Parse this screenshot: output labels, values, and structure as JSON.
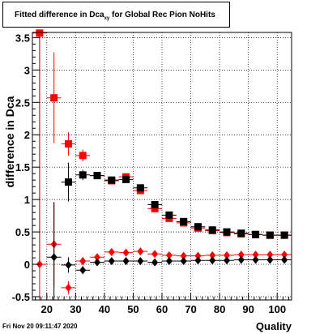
{
  "title": {
    "text": "Fitted difference in Dca",
    "sub": "xy",
    "rest": " for Global Rec Pion NoHits"
  },
  "stamp": "Fri Nov 20 09:11:47 2020",
  "xlabel": "Quality",
  "ylabel": "difference in Dca",
  "chart_data": {
    "type": "scatter",
    "title": "Fitted difference in Dca_xy for Global Rec Pion NoHits",
    "xlabel": "Quality",
    "ylabel": "difference in Dca",
    "xlim": [
      15,
      105
    ],
    "ylim": [
      -0.55,
      3.58
    ],
    "xticks": [
      20,
      30,
      40,
      50,
      60,
      70,
      80,
      90,
      100
    ],
    "yticks": [
      -0.5,
      0,
      0.5,
      1,
      1.5,
      2,
      2.5,
      3,
      3.5
    ],
    "grid": true,
    "series": [
      {
        "marker": "square",
        "color": "#ff0000",
        "x": [
          17.5,
          22.5,
          27.5,
          32.5,
          37.5,
          42.5,
          47.5,
          52.5,
          57.5,
          62.5,
          67.5,
          72.5,
          77.5,
          82.5,
          87.5,
          92.5,
          97.5,
          102.5
        ],
        "y": [
          3.57,
          2.57,
          1.86,
          1.68,
          1.37,
          1.29,
          1.35,
          1.14,
          0.86,
          0.71,
          0.64,
          0.56,
          0.52,
          0.49,
          0.47,
          0.46,
          0.45,
          0.45
        ],
        "err": [
          3.6,
          0.7,
          0.18,
          0.09,
          0.05,
          0.05,
          0.04,
          0.03,
          0.03,
          0.03,
          0.03,
          0.02,
          0.02,
          0.02,
          0.02,
          0.02,
          0.02,
          0.02
        ]
      },
      {
        "marker": "square",
        "color": "#000000",
        "x": [
          27.5,
          32.5,
          37.5,
          42.5,
          47.5,
          52.5,
          57.5,
          62.5,
          67.5,
          72.5,
          77.5,
          82.5,
          87.5,
          92.5,
          97.5,
          102.5
        ],
        "y": [
          1.27,
          1.38,
          1.37,
          1.3,
          1.31,
          1.18,
          0.92,
          0.76,
          0.66,
          0.58,
          0.53,
          0.5,
          0.48,
          0.46,
          0.45,
          0.45
        ],
        "err": [
          0.3,
          0.08,
          0.05,
          0.04,
          0.04,
          0.03,
          0.03,
          0.03,
          0.02,
          0.02,
          0.02,
          0.02,
          0.02,
          0.02,
          0.02,
          0.02
        ]
      },
      {
        "marker": "diamond",
        "color": "#ff0000",
        "x": [
          17.5,
          22.5,
          27.5,
          32.5,
          37.5,
          42.5,
          47.5,
          52.5,
          57.5,
          62.5,
          67.5,
          72.5,
          77.5,
          82.5,
          87.5,
          92.5,
          97.5,
          102.5
        ],
        "y": [
          0.0,
          0.31,
          -0.36,
          0.05,
          0.11,
          0.19,
          0.18,
          0.2,
          0.16,
          0.14,
          0.13,
          0.13,
          0.14,
          0.14,
          0.15,
          0.15,
          0.15,
          0.15
        ],
        "err": [
          3.6,
          0.65,
          0.1,
          0.06,
          0.04,
          0.03,
          0.03,
          0.02,
          0.02,
          0.02,
          0.02,
          0.02,
          0.02,
          0.02,
          0.02,
          0.02,
          0.02,
          0.02
        ]
      },
      {
        "marker": "diamond",
        "color": "#000000",
        "x": [
          22.5,
          27.5,
          32.5,
          37.5,
          42.5,
          47.5,
          52.5,
          57.5,
          62.5,
          67.5,
          72.5,
          77.5,
          82.5,
          87.5,
          92.5,
          97.5,
          102.5
        ],
        "y": [
          0.11,
          -0.01,
          -0.09,
          0.03,
          0.05,
          0.05,
          0.05,
          0.03,
          0.05,
          0.05,
          0.06,
          0.06,
          0.06,
          0.07,
          0.07,
          0.07,
          0.07
        ],
        "err": [
          0.85,
          0.12,
          0.06,
          0.04,
          0.03,
          0.03,
          0.02,
          0.02,
          0.02,
          0.02,
          0.02,
          0.02,
          0.02,
          0.02,
          0.02,
          0.02,
          0.02
        ]
      }
    ]
  }
}
